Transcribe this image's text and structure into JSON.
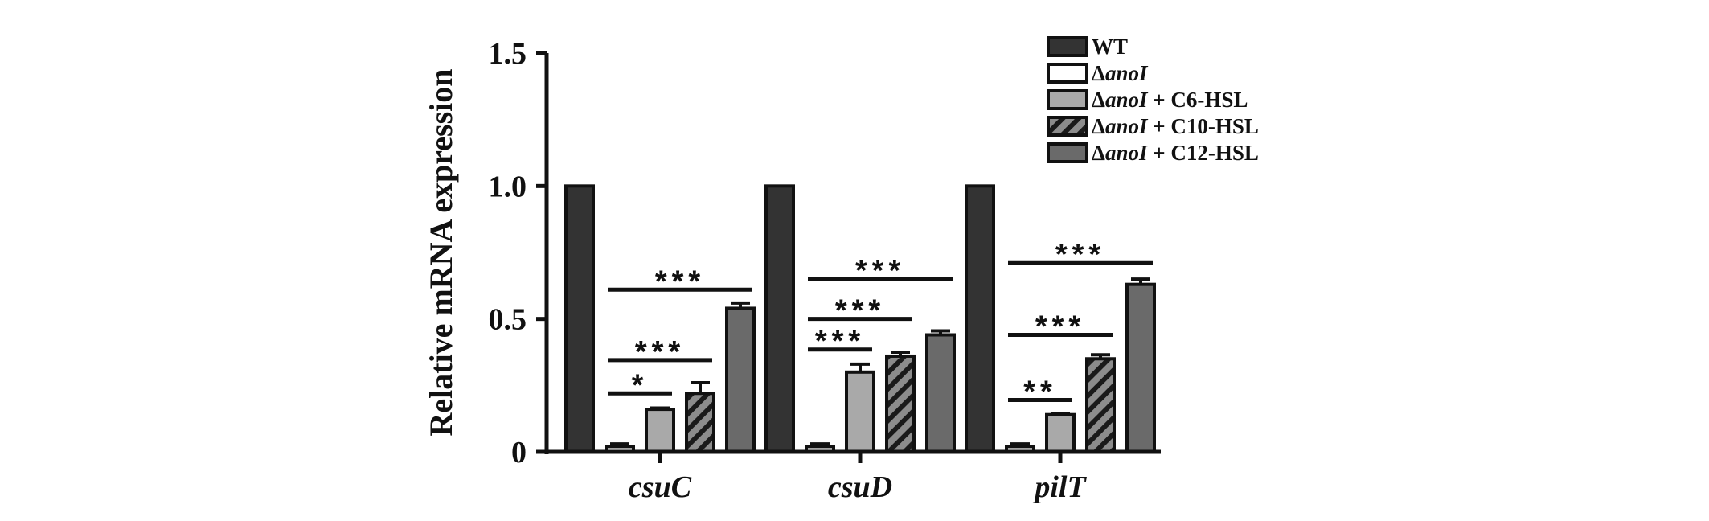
{
  "chart_data": {
    "type": "bar",
    "title": "",
    "xlabel": "",
    "ylabel": "Relative mRNA expression",
    "ylim": [
      0,
      1.5
    ],
    "yticks": [
      0,
      0.5,
      1.0,
      1.5
    ],
    "ytick_labels": [
      "0",
      "0.5",
      "1.0",
      "1.5"
    ],
    "categories": [
      "csuC",
      "csuD",
      "pilT"
    ],
    "series": [
      {
        "name": "WT",
        "legend_prefix": "",
        "legend_italic": "",
        "legend_suffix": "WT",
        "pattern": "dark",
        "values": [
          1.0,
          1.0,
          1.0
        ],
        "errors": [
          0.0,
          0.0,
          0.0
        ]
      },
      {
        "name": "ΔanoI",
        "legend_prefix": "Δ",
        "legend_italic": "anoI",
        "legend_suffix": "",
        "pattern": "white",
        "values": [
          0.02,
          0.02,
          0.02
        ],
        "errors": [
          0.01,
          0.01,
          0.01
        ]
      },
      {
        "name": "ΔanoI + C6-HSL",
        "legend_prefix": "Δ",
        "legend_italic": "anoI",
        "legend_suffix": " + C6-HSL",
        "pattern": "light",
        "values": [
          0.16,
          0.3,
          0.14
        ],
        "errors": [
          0.005,
          0.03,
          0.005
        ]
      },
      {
        "name": "ΔanoI + C10-HSL",
        "legend_prefix": "Δ",
        "legend_italic": "anoI",
        "legend_suffix": " + C10-HSL",
        "pattern": "hatch",
        "values": [
          0.22,
          0.36,
          0.35
        ],
        "errors": [
          0.04,
          0.015,
          0.015
        ]
      },
      {
        "name": "ΔanoI + C12-HSL",
        "legend_prefix": "Δ",
        "legend_italic": "anoI",
        "legend_suffix": " + C12-HSL",
        "pattern": "medium",
        "values": [
          0.54,
          0.44,
          0.63
        ],
        "errors": [
          0.02,
          0.015,
          0.02
        ]
      }
    ],
    "significance": [
      {
        "category": 0,
        "from_series": 1,
        "to_series": 2,
        "level": 0.22,
        "label": "*"
      },
      {
        "category": 0,
        "from_series": 1,
        "to_series": 3,
        "level": 0.345,
        "label": "***"
      },
      {
        "category": 0,
        "from_series": 1,
        "to_series": 4,
        "level": 0.61,
        "label": "***"
      },
      {
        "category": 1,
        "from_series": 1,
        "to_series": 2,
        "level": 0.385,
        "label": "***"
      },
      {
        "category": 1,
        "from_series": 1,
        "to_series": 3,
        "level": 0.5,
        "label": "***"
      },
      {
        "category": 1,
        "from_series": 1,
        "to_series": 4,
        "level": 0.65,
        "label": "***"
      },
      {
        "category": 2,
        "from_series": 1,
        "to_series": 2,
        "level": 0.195,
        "label": "**"
      },
      {
        "category": 2,
        "from_series": 1,
        "to_series": 3,
        "level": 0.44,
        "label": "***"
      },
      {
        "category": 2,
        "from_series": 1,
        "to_series": 4,
        "level": 0.71,
        "label": "***"
      }
    ],
    "legend_position": "top-right",
    "grid": false,
    "colors": {
      "dark": "#333333",
      "white": "#ffffff",
      "light": "#a9a9a9",
      "hatch_bg": "#8c8c8c",
      "hatch_line": "#1a1a1a",
      "medium": "#6a6a6a",
      "stroke": "#111111"
    }
  }
}
